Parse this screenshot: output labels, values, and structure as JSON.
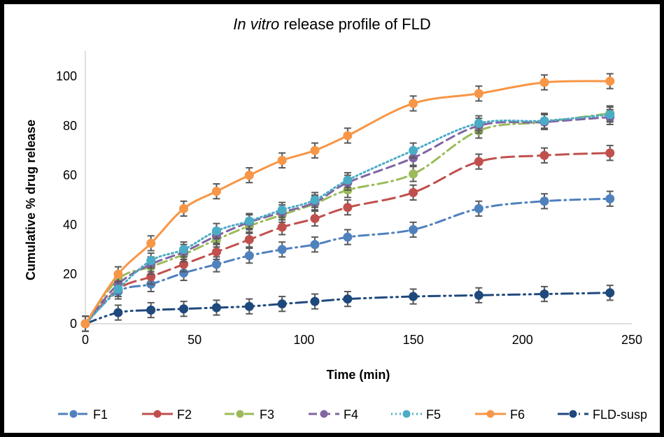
{
  "chart_data": {
    "type": "line",
    "title_italic": "In vitro",
    "title_rest": " release profile of FLD",
    "title": "In vitro release profile of FLD",
    "xlabel": "Time (min)",
    "ylabel": "Cumulative % drug release",
    "xlim": [
      0,
      250
    ],
    "ylim": [
      0,
      110
    ],
    "xticks": [
      0,
      50,
      100,
      150,
      200,
      250
    ],
    "yticks": [
      0,
      20,
      40,
      60,
      80,
      100
    ],
    "grid": false,
    "legend_position": "bottom",
    "error_bars": true,
    "x": [
      0,
      15,
      30,
      45,
      60,
      75,
      90,
      105,
      120,
      150,
      180,
      210,
      240
    ],
    "series": [
      {
        "name": "F1",
        "color": "#4f81bd",
        "dash": "dash-dot",
        "values": [
          0,
          13,
          16,
          20.5,
          24,
          27.5,
          30,
          32,
          35,
          38,
          46.5,
          49.5,
          50.5
        ],
        "error": 3
      },
      {
        "name": "F2",
        "color": "#c0504d",
        "dash": "long-dash",
        "values": [
          0,
          14,
          19,
          24,
          29,
          34,
          39,
          42.5,
          47,
          53,
          65.5,
          68,
          69
        ],
        "error": 3
      },
      {
        "name": "F3",
        "color": "#9bbb59",
        "dash": "dash-dot",
        "values": [
          0,
          18,
          23,
          28,
          34,
          39.5,
          44,
          48.5,
          54,
          60.5,
          78,
          81.5,
          85
        ],
        "error": 3
      },
      {
        "name": "F4",
        "color": "#8064a2",
        "dash": "dash",
        "values": [
          0,
          16,
          24,
          29,
          35.5,
          41,
          45,
          49,
          57,
          67,
          80,
          81.5,
          83.5
        ],
        "error": 3
      },
      {
        "name": "F5",
        "color": "#4bacc6",
        "dash": "dot",
        "values": [
          0,
          14,
          25.5,
          30,
          37.5,
          41.5,
          46,
          50,
          58,
          70,
          81,
          82,
          84.5
        ],
        "error": 3
      },
      {
        "name": "F6",
        "color": "#f79646",
        "dash": "solid",
        "values": [
          0,
          20,
          32.5,
          46.5,
          53.5,
          60,
          66,
          70,
          76,
          89,
          93,
          97.5,
          98
        ],
        "error": 3
      },
      {
        "name": "FLD-susp",
        "color": "#1f497d",
        "dash": "long-dash-dot-dot",
        "values": [
          0,
          4.5,
          5.5,
          6,
          6.5,
          7,
          8,
          9,
          10,
          11,
          11.5,
          12,
          12.5
        ],
        "error": 3
      }
    ]
  }
}
